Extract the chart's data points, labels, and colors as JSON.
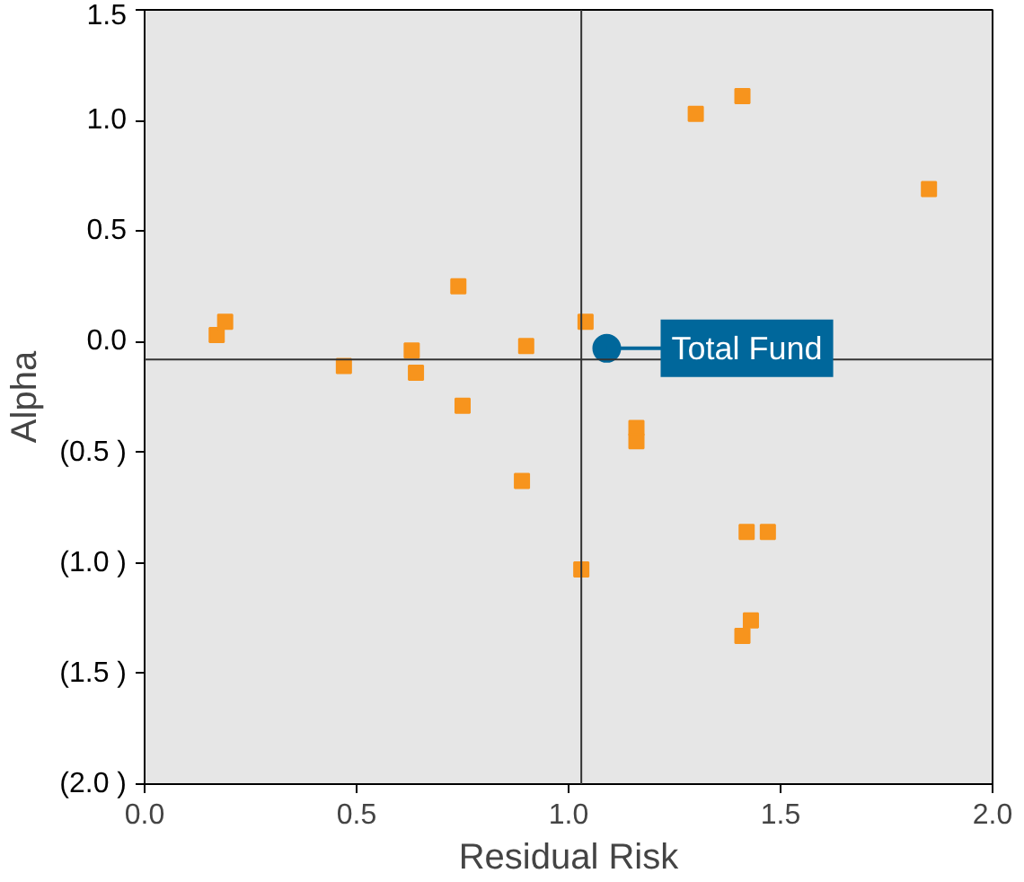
{
  "chart_data": {
    "type": "scatter",
    "xlabel": "Residual Risk",
    "ylabel": "Alpha",
    "xlim": [
      0,
      2
    ],
    "ylim": [
      -2,
      1.5
    ],
    "xticks": [
      {
        "value": 0,
        "label": "0.0"
      },
      0.5,
      {
        "value": 1,
        "label": "1.0"
      },
      1.5,
      {
        "value": 2,
        "label": "2.0"
      }
    ],
    "yticks": [
      {
        "value": -2,
        "label": "(2.0 )"
      },
      {
        "value": -1.5,
        "label": "(1.5 )"
      },
      {
        "value": -1,
        "label": "(1.0 )"
      },
      {
        "value": -0.5,
        "label": "(0.5 )"
      },
      {
        "value": 0,
        "label": "0.0"
      },
      0.5,
      {
        "value": 1,
        "label": "1.0"
      },
      1.5
    ],
    "grid": false,
    "ref_lines": [
      {
        "axis": "x",
        "value": 1.03,
        "color": "#333333"
      },
      {
        "axis": "y",
        "value": -0.08,
        "color": "#333333"
      }
    ],
    "series": [
      {
        "color": "#f7941d",
        "marker": "square",
        "x": [
          0.17,
          0.19,
          0.47,
          0.63,
          0.64,
          0.74,
          0.75,
          0.89,
          0.9,
          1.03,
          1.04,
          1.16,
          1.16,
          1.3,
          1.41,
          1.42,
          1.47,
          1.43,
          1.41,
          1.85
        ],
        "values": [
          0.03,
          0.09,
          -0.11,
          -0.04,
          -0.14,
          0.25,
          -0.29,
          -0.63,
          -0.02,
          -1.03,
          0.09,
          -0.39,
          -0.45,
          1.03,
          1.11,
          -0.86,
          -0.86,
          -1.26,
          -1.33,
          0.69
        ]
      },
      {
        "name": "Total Fund",
        "color": "#00679b",
        "marker": "circle",
        "x": [
          1.09
        ],
        "values": [
          -0.03
        ]
      }
    ]
  }
}
